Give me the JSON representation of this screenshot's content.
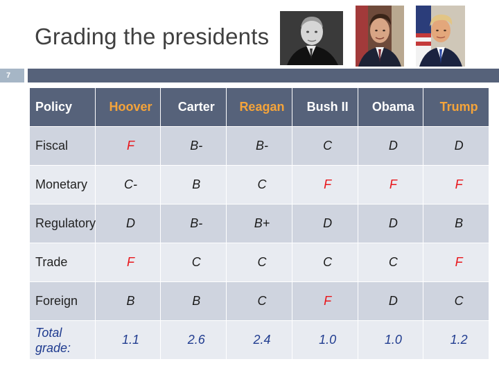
{
  "slide": {
    "title": "Grading the presidents",
    "page_number": "7"
  },
  "photos": [
    {
      "subject": "hoover-portrait",
      "style": "black-and-white"
    },
    {
      "subject": "reagan-portrait",
      "style": "color"
    },
    {
      "subject": "trump-portrait",
      "style": "color"
    }
  ],
  "colors": {
    "header_bg": "#56627a",
    "accent": "#f5a43a",
    "fail": "#e8161b",
    "total": "#1f3b8f",
    "row_dark": "#cfd4df",
    "row_light": "#e8ebf1",
    "page_tab": "#a6b6c6"
  },
  "table": {
    "headers": [
      "Policy",
      "Hoover",
      "Carter",
      "Reagan",
      "Bush II",
      "Obama",
      "Trump"
    ],
    "rows": [
      {
        "label": "Fiscal",
        "cells": [
          "F",
          "B-",
          "B-",
          "C",
          "D",
          "D"
        ]
      },
      {
        "label": "Monetary",
        "cells": [
          "C-",
          "B",
          "C",
          "F",
          "F",
          "F"
        ]
      },
      {
        "label": "Regulatory",
        "cells": [
          "D",
          "B-",
          "B+",
          "D",
          "D",
          "B"
        ]
      },
      {
        "label": "Trade",
        "cells": [
          "F",
          "C",
          "C",
          "C",
          "C",
          "F"
        ]
      },
      {
        "label": "Foreign",
        "cells": [
          "B",
          "B",
          "C",
          "F",
          "D",
          "C"
        ]
      }
    ],
    "total": {
      "label_line1": "Total",
      "label_line2": "grade:",
      "cells": [
        "1.1",
        "2.6",
        "2.4",
        "1.0",
        "1.0",
        "1.2"
      ]
    }
  }
}
